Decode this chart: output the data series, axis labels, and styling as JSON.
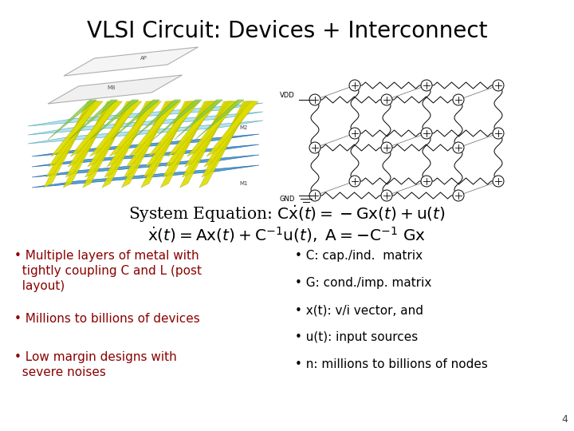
{
  "title": "VLSI Circuit: Devices + Interconnect",
  "title_fontsize": 20,
  "title_color": "#000000",
  "title_fontweight": "normal",
  "bg_color": "#ffffff",
  "eq_fontsize": 13.5,
  "left_bullets": [
    "Multiple layers of metal with\ntightly coupling C and L (post\nlayout)",
    "Millions to billions of devices",
    "Low margin designs with\nsevere noises"
  ],
  "right_bullets": [
    "C: cap./ind.  matrix",
    "G: cond./imp. matrix",
    "x(t): v/i vector, and",
    "u(t): input sources",
    "n: millions to billions of nodes"
  ],
  "left_bullet_color": "#8B0000",
  "right_bullet_color": "#000000",
  "bullet_fontsize": 11.0,
  "page_number": "4",
  "page_number_fontsize": 9,
  "blue_layer": "#4499CC",
  "yellow_layer": "#DDDD00",
  "green_layer": "#88CC44",
  "cyan_layer": "#AADDEE"
}
